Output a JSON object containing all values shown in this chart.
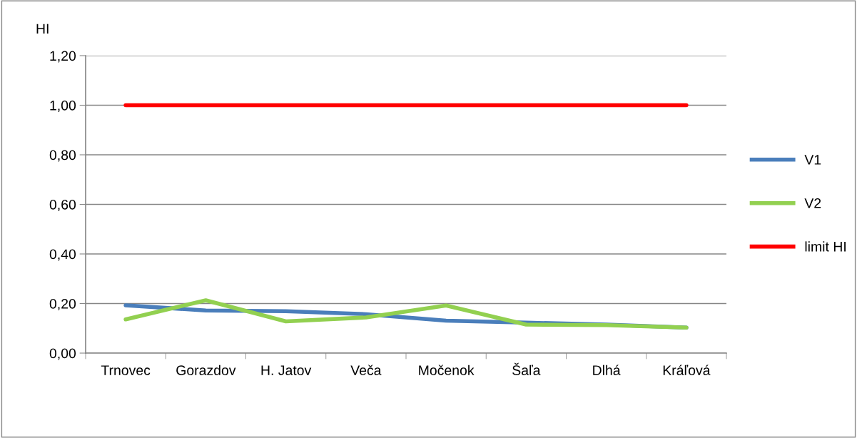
{
  "chart_data": {
    "type": "line",
    "ylabel": "HI",
    "categories": [
      "Trnovec",
      "Gorazdov",
      "H. Jatov",
      "Veča",
      "Močenok",
      "Šaľa",
      "Dlhá",
      "Kráľová"
    ],
    "series": [
      {
        "name": "V1",
        "color": "#4a7ebb",
        "values": [
          0.193,
          0.172,
          0.169,
          0.157,
          0.131,
          0.123,
          0.115,
          0.103
        ]
      },
      {
        "name": "V2",
        "color": "#92d050",
        "values": [
          0.136,
          0.213,
          0.128,
          0.144,
          0.192,
          0.115,
          0.113,
          0.103
        ]
      },
      {
        "name": "limit HI",
        "color": "#ff0000",
        "values": [
          1.0,
          1.0,
          1.0,
          1.0,
          1.0,
          1.0,
          1.0,
          1.0
        ]
      }
    ],
    "ylim": [
      0,
      1.2
    ],
    "yticks": [
      {
        "value": 0,
        "label": "0,00"
      },
      {
        "value": 0.2,
        "label": "0,20"
      },
      {
        "value": 0.4,
        "label": "0,40"
      },
      {
        "value": 0.6,
        "label": "0,60"
      },
      {
        "value": 0.8,
        "label": "0,80"
      },
      {
        "value": 1.0,
        "label": "1,00"
      },
      {
        "value": 1.2,
        "label": "1,20"
      }
    ],
    "grid": "y",
    "legend": "right",
    "marker": "none",
    "line_style": "solid"
  }
}
